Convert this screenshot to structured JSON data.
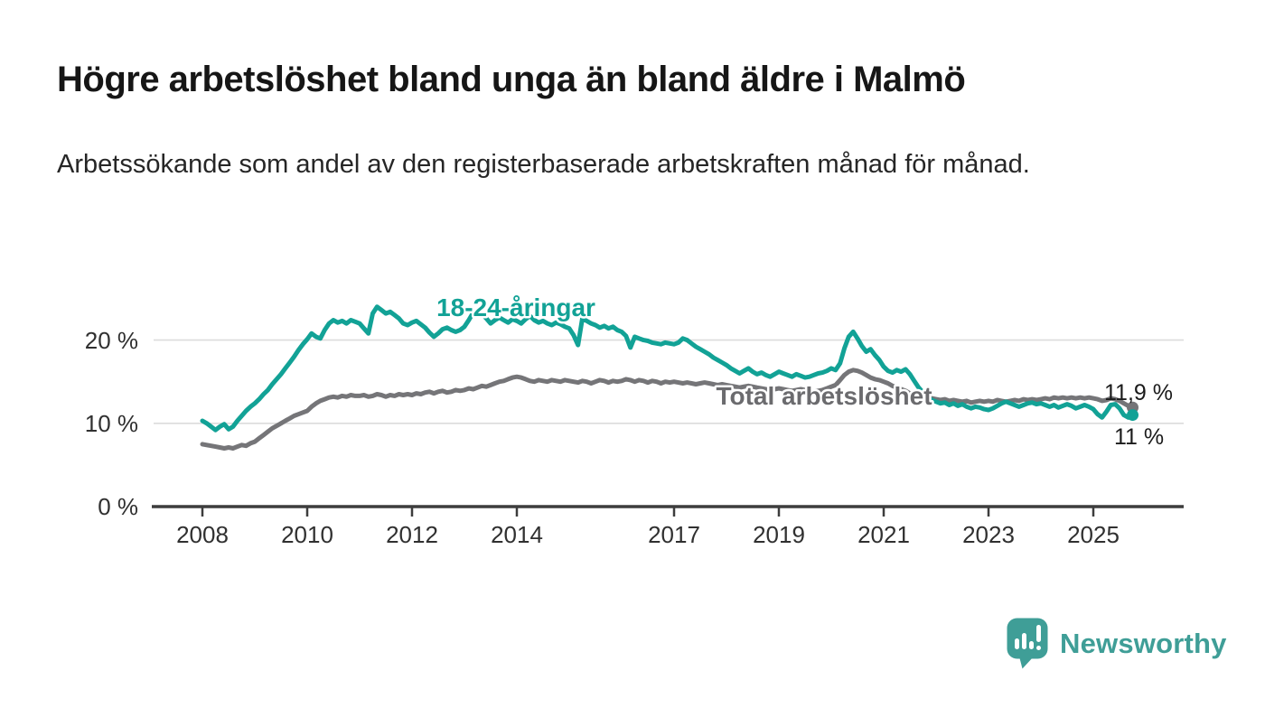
{
  "branding": {
    "name": "Newsworthy",
    "color": "#3f9e97",
    "icon": "newsworthy-speech-bubble-chart-icon"
  },
  "chart_data": {
    "type": "line",
    "title": "Högre arbetslöshet bland unga än bland äldre i Malmö",
    "subtitle": "Arbetssökande som andel av den registerbaserade arbetskraften månad för månad.",
    "grid": "horizontal",
    "x_axis": {
      "unit": "year",
      "ticks": [
        2008,
        2010,
        2012,
        2014,
        2017,
        2019,
        2021,
        2023,
        2025
      ],
      "range": [
        2007.0,
        2026.7
      ]
    },
    "y_axis": {
      "ticks": [
        "0 %",
        "10 %",
        "20 %"
      ],
      "tick_values": [
        0,
        10,
        20
      ],
      "range": [
        0,
        28
      ],
      "unit": "%"
    },
    "start_year": 2008,
    "interval_months": 1,
    "series": [
      {
        "name": "Total arbetslöshet",
        "color": "#757578",
        "end_label": "11,9 %",
        "end_value": 11.9,
        "values": [
          7.5,
          7.4,
          7.3,
          7.2,
          7.1,
          7.0,
          7.1,
          7.0,
          7.2,
          7.4,
          7.3,
          7.6,
          7.8,
          8.2,
          8.6,
          9.0,
          9.4,
          9.7,
          10.0,
          10.3,
          10.6,
          10.9,
          11.1,
          11.3,
          11.5,
          12.0,
          12.4,
          12.7,
          12.9,
          13.1,
          13.2,
          13.1,
          13.3,
          13.2,
          13.4,
          13.3,
          13.3,
          13.4,
          13.2,
          13.3,
          13.5,
          13.4,
          13.2,
          13.4,
          13.3,
          13.5,
          13.4,
          13.5,
          13.4,
          13.6,
          13.5,
          13.7,
          13.8,
          13.6,
          13.8,
          13.9,
          13.7,
          13.8,
          14.0,
          13.9,
          14.0,
          14.2,
          14.1,
          14.3,
          14.5,
          14.4,
          14.6,
          14.8,
          15.0,
          15.1,
          15.3,
          15.5,
          15.6,
          15.5,
          15.3,
          15.1,
          15.0,
          15.2,
          15.1,
          15.0,
          15.2,
          15.1,
          15.0,
          15.2,
          15.1,
          15.0,
          14.9,
          15.1,
          15.0,
          14.8,
          15.0,
          15.2,
          15.1,
          14.9,
          15.1,
          15.0,
          15.1,
          15.3,
          15.2,
          15.0,
          15.2,
          15.1,
          14.9,
          15.1,
          15.0,
          14.8,
          15.0,
          14.9,
          15.0,
          14.9,
          14.8,
          14.9,
          14.8,
          14.7,
          14.8,
          14.9,
          14.8,
          14.7,
          14.6,
          14.7,
          14.6,
          14.5,
          14.4,
          14.3,
          14.4,
          14.5,
          14.4,
          14.3,
          14.2,
          14.1,
          14.0,
          14.1,
          14.2,
          14.1,
          14.0,
          13.9,
          14.0,
          14.1,
          14.0,
          13.9,
          13.8,
          13.9,
          14.0,
          14.2,
          14.4,
          14.6,
          15.2,
          15.8,
          16.2,
          16.4,
          16.3,
          16.1,
          15.8,
          15.5,
          15.3,
          15.2,
          15.0,
          14.8,
          14.5,
          14.3,
          14.1,
          13.9,
          13.6,
          13.4,
          13.1,
          13.0,
          12.9,
          13.0,
          12.9,
          12.8,
          12.9,
          12.7,
          12.8,
          12.7,
          12.6,
          12.7,
          12.5,
          12.6,
          12.7,
          12.6,
          12.7,
          12.6,
          12.8,
          12.7,
          12.6,
          12.7,
          12.8,
          12.7,
          12.9,
          12.8,
          12.9,
          12.8,
          12.9,
          13.0,
          12.9,
          13.1,
          13.0,
          13.1,
          13.0,
          13.1,
          13.0,
          13.1,
          13.0,
          13.1,
          13.0,
          12.9,
          12.7,
          12.8,
          13.0,
          12.9,
          12.7,
          12.4,
          12.1,
          11.9
        ]
      },
      {
        "name": "18-24-åringar",
        "color": "#12a296",
        "end_label": "11 %",
        "end_value": 11.0,
        "values": [
          10.3,
          10.0,
          9.6,
          9.2,
          9.6,
          9.9,
          9.3,
          9.6,
          10.3,
          10.9,
          11.5,
          12.0,
          12.4,
          12.9,
          13.5,
          14.0,
          14.7,
          15.3,
          15.9,
          16.6,
          17.3,
          18.0,
          18.8,
          19.5,
          20.1,
          20.8,
          20.4,
          20.2,
          21.2,
          22.0,
          22.4,
          22.1,
          22.3,
          22.0,
          22.4,
          22.2,
          22.0,
          21.4,
          20.8,
          23.2,
          24.0,
          23.6,
          23.2,
          23.4,
          23.0,
          22.6,
          22.0,
          21.8,
          22.1,
          22.3,
          21.9,
          21.5,
          20.9,
          20.4,
          20.8,
          21.3,
          21.5,
          21.2,
          21.0,
          21.2,
          21.6,
          22.4,
          23.3,
          23.6,
          23.1,
          22.6,
          22.0,
          22.4,
          22.7,
          22.4,
          22.1,
          22.5,
          22.3,
          22.0,
          22.5,
          22.9,
          22.4,
          22.1,
          22.3,
          22.0,
          21.8,
          22.1,
          21.9,
          21.6,
          21.4,
          20.6,
          19.4,
          22.6,
          22.3,
          22.0,
          21.8,
          21.5,
          21.7,
          21.4,
          21.6,
          21.2,
          21.0,
          20.5,
          19.1,
          20.4,
          20.2,
          20.0,
          19.9,
          19.7,
          19.6,
          19.5,
          19.7,
          19.6,
          19.5,
          19.7,
          20.2,
          20.0,
          19.6,
          19.2,
          18.9,
          18.6,
          18.3,
          17.9,
          17.6,
          17.3,
          17.0,
          16.6,
          16.3,
          16.0,
          16.3,
          16.6,
          16.2,
          15.9,
          16.1,
          15.8,
          15.6,
          15.9,
          16.2,
          16.0,
          15.8,
          15.6,
          15.9,
          15.7,
          15.5,
          15.6,
          15.8,
          16.0,
          16.1,
          16.3,
          16.6,
          16.4,
          17.2,
          19.0,
          20.4,
          21.0,
          20.2,
          19.3,
          18.6,
          18.9,
          18.2,
          17.6,
          16.8,
          16.3,
          16.1,
          16.4,
          16.2,
          16.5,
          15.9,
          15.1,
          14.3,
          13.7,
          13.2,
          12.8,
          12.6,
          12.4,
          12.5,
          12.2,
          12.4,
          12.1,
          12.3,
          12.0,
          11.8,
          12.0,
          11.9,
          11.7,
          11.6,
          11.8,
          12.1,
          12.4,
          12.6,
          12.4,
          12.2,
          12.0,
          12.2,
          12.4,
          12.5,
          12.3,
          12.4,
          12.2,
          12.0,
          12.2,
          11.9,
          12.1,
          12.3,
          12.1,
          11.8,
          12.0,
          12.2,
          12.0,
          11.7,
          11.1,
          10.7,
          11.4,
          12.2,
          12.3,
          11.8,
          11.0,
          10.7,
          11.0
        ]
      }
    ]
  }
}
